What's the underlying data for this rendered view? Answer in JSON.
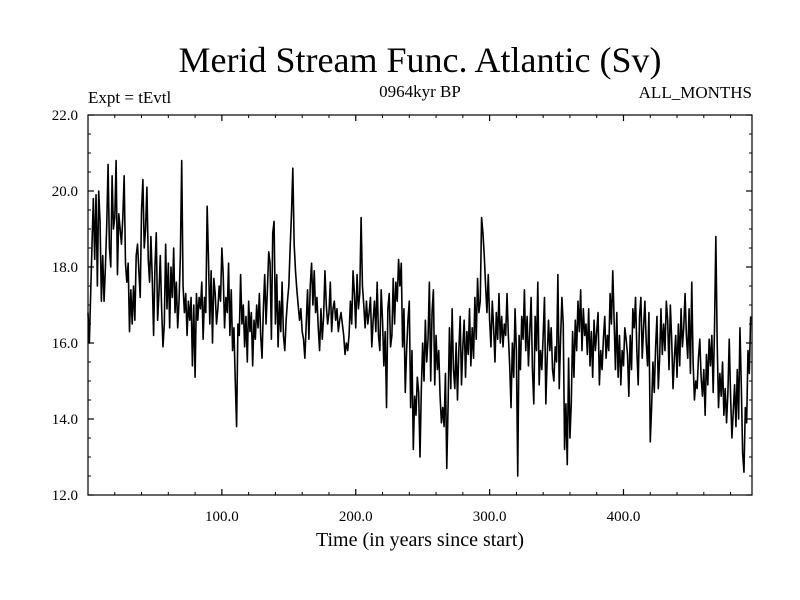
{
  "chart_data": {
    "type": "line",
    "title": "Merid Stream Func. Atlantic (Sv)",
    "left_label": "Expt = tEvtl",
    "center_label": "0964kyr BP",
    "right_label": "ALL_MONTHS",
    "xlabel": "Time (in years since start)",
    "ylabel": "",
    "xlim": [
      0,
      496
    ],
    "ylim": [
      12,
      22
    ],
    "x_ticks": [
      100,
      200,
      300,
      400
    ],
    "x_tick_labels": [
      "100.0",
      "200.0",
      "300.0",
      "400.0"
    ],
    "y_ticks": [
      12,
      14,
      16,
      18,
      20,
      22
    ],
    "y_tick_labels": [
      "12.0",
      "14.0",
      "16.0",
      "18.0",
      "20.0",
      "22.0"
    ],
    "series": [
      {
        "name": "Merid Stream Func. Atlantic",
        "x_start": 0,
        "x_step": 1,
        "values": [
          16.8,
          16.0,
          17.3,
          18.6,
          19.8,
          18.2,
          19.9,
          17.5,
          20.0,
          19.2,
          17.1,
          18.3,
          17.1,
          18.0,
          19.1,
          20.7,
          18.5,
          18.0,
          20.4,
          19.0,
          19.3,
          20.8,
          17.8,
          19.4,
          19.0,
          18.6,
          19.3,
          20.4,
          18.1,
          17.6,
          18.1,
          16.3,
          17.4,
          16.5,
          17.5,
          16.6,
          18.3,
          18.6,
          17.9,
          17.2,
          19.5,
          20.3,
          18.5,
          19.0,
          20.1,
          18.2,
          17.6,
          18.8,
          17.7,
          16.2,
          18.0,
          18.9,
          16.6,
          17.3,
          18.3,
          16.9,
          15.9,
          16.5,
          18.6,
          16.9,
          18.1,
          16.4,
          18.0,
          17.2,
          18.5,
          16.8,
          17.6,
          16.4,
          17.1,
          18.3,
          20.8,
          17.5,
          16.8,
          17.3,
          16.2,
          17.1,
          16.6,
          17.2,
          15.4,
          17.0,
          15.1,
          17.3,
          16.6,
          17.2,
          16.9,
          17.6,
          16.1,
          17.2,
          16.8,
          19.6,
          18.2,
          16.5,
          17.9,
          16.0,
          17.7,
          17.3,
          16.5,
          16.9,
          17.5,
          17.1,
          18.5,
          17.8,
          16.4,
          17.2,
          16.8,
          18.1,
          16.2,
          17.4,
          15.8,
          16.4,
          15.0,
          13.8,
          16.5,
          16.2,
          17.8,
          16.5,
          17.0,
          15.9,
          16.7,
          15.5,
          17.1,
          16.3,
          16.8,
          15.4,
          16.6,
          16.1,
          17.0,
          16.4,
          17.3,
          16.2,
          15.6,
          16.9,
          17.8,
          16.5,
          17.4,
          18.4,
          18.1,
          16.1,
          18.9,
          19.2,
          16.5,
          17.8,
          15.9,
          17.1,
          16.3,
          17.6,
          16.2,
          15.8,
          16.6,
          17.1,
          17.5,
          18.5,
          19.4,
          20.6,
          18.6,
          17.9,
          17.4,
          17.0,
          16.6,
          16.9,
          16.3,
          16.1,
          15.6,
          16.5,
          17.4,
          16.1,
          17.5,
          18.1,
          17.0,
          17.9,
          16.8,
          17.2,
          16.4,
          15.8,
          16.9,
          16.1,
          16.7,
          17.9,
          17.0,
          16.5,
          16.8,
          17.6,
          16.3,
          16.9,
          17.1,
          16.6,
          16.9,
          16.3,
          16.6,
          16.8,
          16.5,
          16.2,
          15.7,
          16.0,
          15.8,
          16.2,
          17.1,
          16.5,
          17.9,
          17.3,
          16.4,
          17.8,
          16.9,
          17.3,
          19.3,
          17.5,
          17.0,
          16.4,
          17.1,
          16.5,
          16.8,
          17.2,
          15.9,
          16.6,
          17.1,
          16.3,
          17.6,
          16.2,
          15.8,
          17.4,
          16.6,
          15.4,
          16.3,
          14.3,
          16.9,
          17.3,
          15.9,
          16.2,
          17.7,
          16.5,
          17.6,
          17.1,
          18.2,
          17.5,
          18.1,
          15.9,
          16.9,
          14.7,
          15.8,
          16.6,
          17.1,
          14.3,
          15.8,
          13.2,
          14.6,
          14.1,
          15.1,
          14.7,
          13.0,
          14.8,
          16.0,
          15.0,
          16.6,
          15.5,
          16.1,
          17.6,
          15.0,
          16.8,
          17.4,
          14.9,
          16.2,
          15.3,
          15.8,
          14.6,
          13.9,
          14.3,
          13.8,
          15.2,
          12.7,
          14.4,
          16.4,
          14.8,
          16.9,
          15.3,
          14.8,
          16.0,
          14.5,
          15.8,
          16.7,
          14.9,
          15.9,
          16.6,
          15.1,
          16.3,
          15.7,
          16.9,
          15.4,
          16.4,
          15.6,
          17.2,
          16.1,
          17.7,
          16.8,
          17.1,
          19.3,
          18.9,
          18.3,
          17.5,
          16.8,
          17.8,
          16.6,
          15.9,
          17.1,
          16.4,
          15.5,
          16.8,
          16.1,
          17.3,
          16.0,
          16.7,
          15.9,
          16.5,
          16.2,
          17.3,
          16.2,
          15.4,
          14.3,
          16.0,
          15.1,
          16.9,
          15.8,
          12.5,
          16.2,
          15.3,
          16.7,
          16.1,
          17.4,
          15.8,
          16.7,
          15.4,
          16.3,
          17.2,
          15.3,
          14.4,
          16.7,
          15.8,
          17.6,
          14.9,
          15.8,
          15.3,
          16.2,
          17.2,
          14.4,
          15.6,
          16.6,
          15.8,
          16.4,
          15.3,
          15.0,
          15.9,
          15.5,
          17.8,
          14.8,
          16.1,
          17.2,
          16.5,
          13.2,
          14.4,
          12.8,
          15.6,
          13.5,
          14.4,
          16.3,
          15.1,
          16.6,
          15.8,
          17.1,
          16.3,
          17.4,
          15.8,
          16.9,
          16.2,
          16.5,
          15.7,
          16.9,
          15.4,
          16.3,
          15.1,
          16.6,
          15.8,
          16.3,
          16.8,
          14.9,
          15.8,
          15.3,
          16.1,
          16.7,
          15.6,
          16.2,
          15.8,
          17.3,
          16.5,
          17.9,
          16.6,
          15.3,
          16.8,
          15.1,
          16.2,
          14.9,
          15.8,
          15.4,
          16.4,
          16.1,
          15.7,
          14.6,
          16.2,
          15.3,
          16.9,
          16.4,
          17.2,
          15.8,
          14.9,
          16.7,
          17.2,
          15.6,
          16.4,
          17.1,
          16.0,
          15.4,
          16.8,
          13.4,
          14.3,
          15.5,
          14.7,
          15.9,
          16.7,
          14.8,
          15.6,
          16.9,
          15.7,
          16.5,
          15.8,
          17.1,
          16.6,
          15.3,
          17.0,
          16.1,
          14.8,
          15.6,
          16.2,
          15.1,
          16.5,
          15.4,
          16.9,
          15.9,
          16.4,
          17.3,
          16.2,
          15.6,
          16.9,
          15.2,
          17.6,
          15.5,
          14.5,
          15.0,
          14.8,
          15.6,
          16.1,
          15.1,
          14.6,
          15.3,
          14.1,
          15.7,
          14.9,
          16.1,
          15.4,
          16.2,
          14.7,
          16.4,
          18.8,
          16.0,
          14.3,
          15.2,
          14.6,
          15.5,
          14.1,
          14.8,
          13.9,
          14.7,
          16.1,
          14.6,
          13.5,
          14.2,
          14.9,
          13.8,
          15.3,
          14.0,
          16.4,
          14.9,
          13.1,
          12.6,
          14.3,
          13.9,
          15.8,
          15.2,
          16.7
        ]
      }
    ]
  }
}
